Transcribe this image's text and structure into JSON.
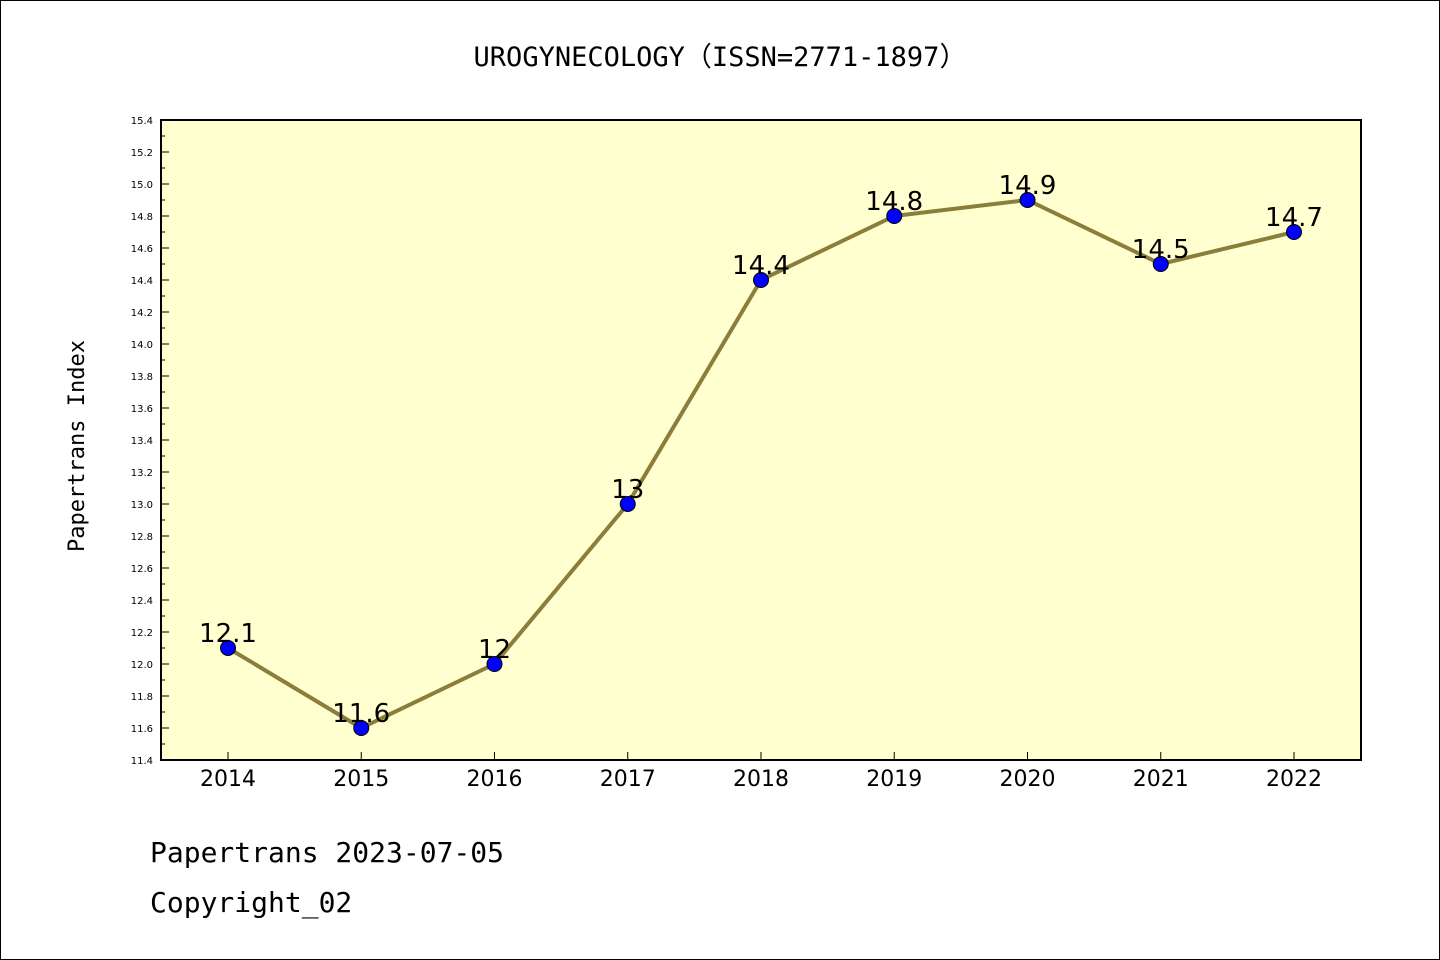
{
  "chart_data": {
    "type": "line",
    "title": "UROGYNECOLOGY（ISSN=2771-1897）",
    "xlabel": "",
    "ylabel": "Papertrans Index",
    "categories": [
      "2014",
      "2015",
      "2016",
      "2017",
      "2018",
      "2019",
      "2020",
      "2021",
      "2022"
    ],
    "series": [
      {
        "values": [
          12.1,
          11.6,
          12,
          13,
          14.4,
          14.8,
          14.9,
          14.5,
          14.7
        ],
        "data_labels": [
          "12.1",
          "11.6",
          "12",
          "13",
          "14.4",
          "14.8",
          "14.9",
          "14.5",
          "14.7"
        ]
      }
    ],
    "ylim": [
      11.4,
      15.4
    ],
    "yticks": [
      "11.4",
      "11.6",
      "11.8",
      "12.0",
      "12.2",
      "12.4",
      "12.6",
      "12.8",
      "13.0",
      "13.2",
      "13.4",
      "13.6",
      "13.8",
      "14.0",
      "14.2",
      "14.4",
      "14.6",
      "14.8",
      "15.0",
      "15.2",
      "15.4"
    ],
    "grid": false,
    "colors": {
      "plot_background": "#ffffd0",
      "line": "#8b7d3a",
      "marker": "#0000ff"
    }
  },
  "footer": {
    "line1": "Papertrans 2023-07-05",
    "line2": "Copyright_02"
  }
}
